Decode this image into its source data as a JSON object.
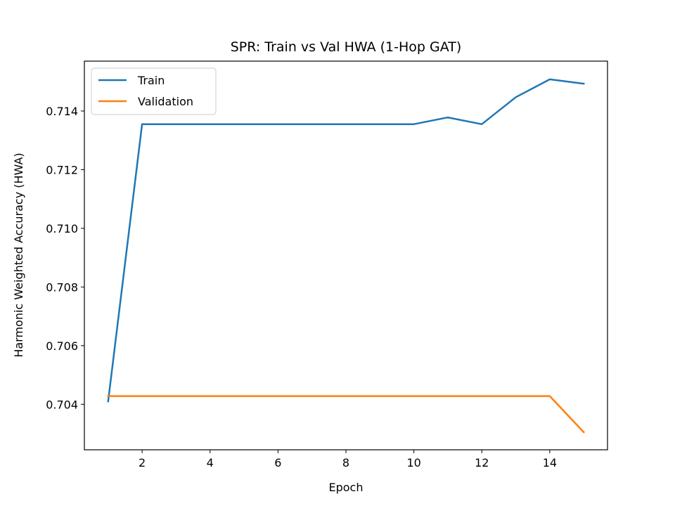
{
  "chart_data": {
    "type": "line",
    "title": "SPR: Train vs Val HWA (1-Hop GAT)",
    "xlabel": "Epoch",
    "ylabel": "Harmonic Weighted Accuracy (HWA)",
    "x": [
      1,
      2,
      3,
      4,
      5,
      6,
      7,
      8,
      9,
      10,
      11,
      12,
      13,
      14,
      15
    ],
    "xlim": [
      0.3,
      15.7
    ],
    "ylim": [
      0.70245,
      0.7157
    ],
    "xticks": [
      2,
      4,
      6,
      8,
      10,
      12,
      14
    ],
    "yticks": [
      0.704,
      0.706,
      0.708,
      0.71,
      0.712,
      0.714
    ],
    "grid": false,
    "legend_position": "top-left",
    "series": [
      {
        "name": "Train",
        "color": "#1f77b4",
        "values": [
          0.7041,
          0.71355,
          0.71355,
          0.71355,
          0.71355,
          0.71355,
          0.71355,
          0.71355,
          0.71355,
          0.71355,
          0.71378,
          0.71355,
          0.71447,
          0.71508,
          0.71493
        ]
      },
      {
        "name": "Validation",
        "color": "#ff7f0e",
        "values": [
          0.70428,
          0.70428,
          0.70428,
          0.70428,
          0.70428,
          0.70428,
          0.70428,
          0.70428,
          0.70428,
          0.70428,
          0.70428,
          0.70428,
          0.70428,
          0.70428,
          0.70305
        ]
      }
    ]
  }
}
